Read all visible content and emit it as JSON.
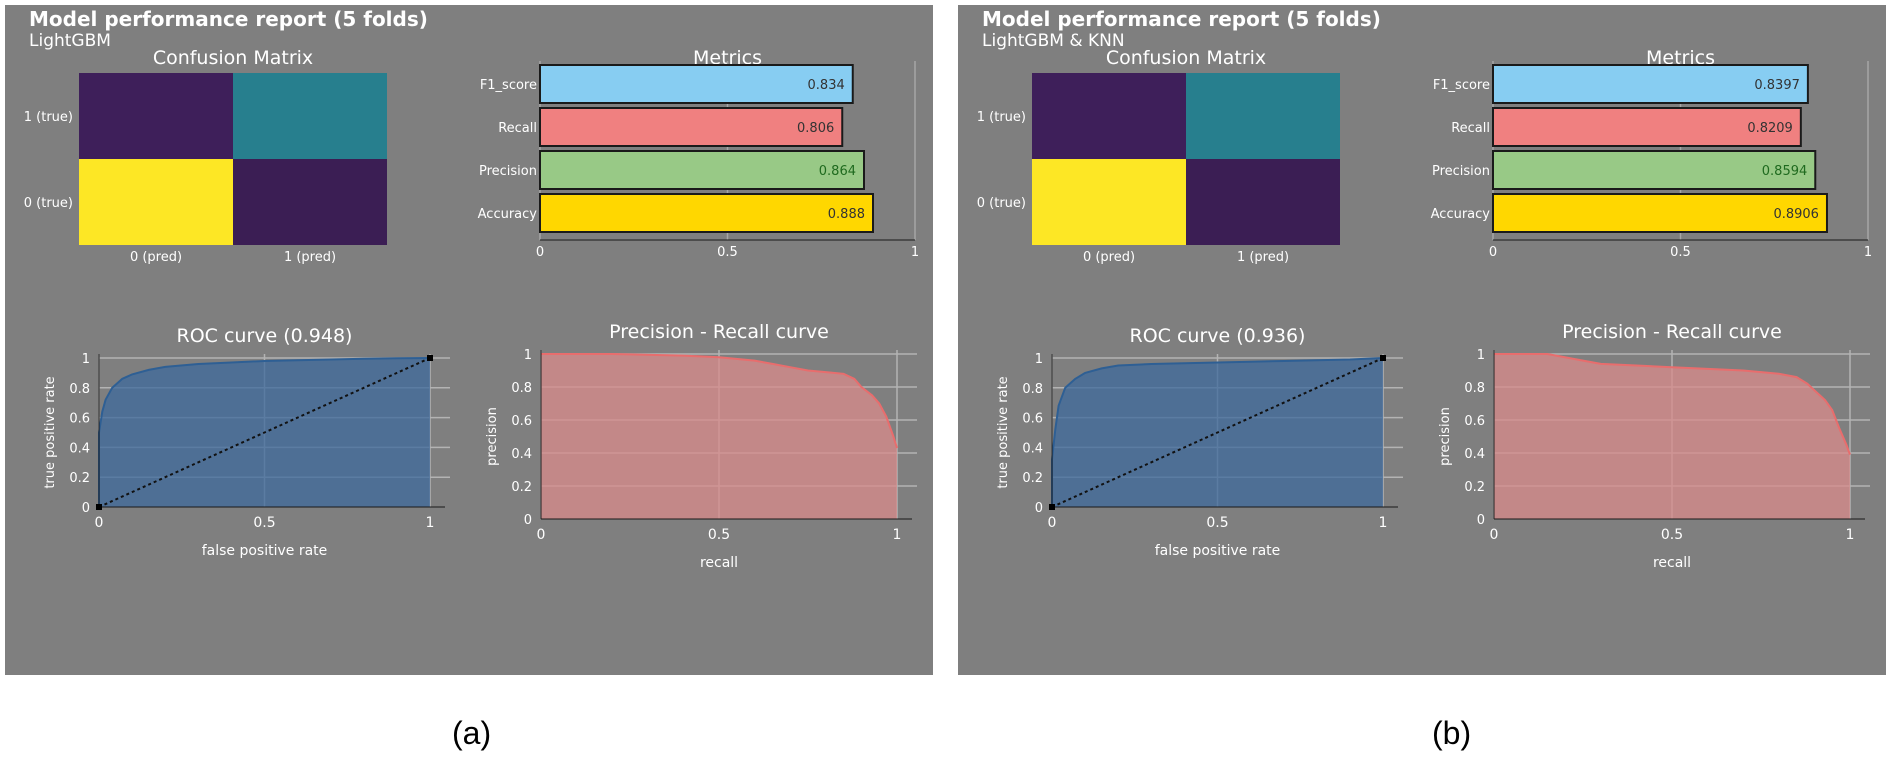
{
  "chart_data": [
    {
      "title": "Model performance report (5 folds)",
      "subtitle": "LightGBM",
      "caption": "(a)",
      "confusion_matrix": {
        "type": "heatmap",
        "title": "Confusion Matrix",
        "row_labels": [
          "1 (true)",
          "0 (true)"
        ],
        "col_labels": [
          "0 (pred)",
          "1 (pred)"
        ],
        "cell_colors": [
          [
            "#3e1f5a",
            "#277f8e"
          ],
          [
            "#fde725",
            "#3b1e54"
          ]
        ]
      },
      "metrics": {
        "type": "bar",
        "title": "Metrics",
        "categories": [
          "F1_score",
          "Recall",
          "Precision",
          "Accuracy"
        ],
        "values": [
          0.834,
          0.806,
          0.864,
          0.888
        ],
        "labels": [
          "0.834",
          "0.806",
          "0.864",
          "0.888"
        ],
        "colors": [
          "#87cdf2",
          "#f08080",
          "#98c986",
          "#ffd700"
        ],
        "xticks": [
          "0",
          "0.5",
          "1"
        ],
        "xlim": [
          0,
          1
        ]
      },
      "roc": {
        "type": "area",
        "title": "ROC curve (0.948)",
        "xlabel": "false positive rate",
        "ylabel": "true positive rate",
        "xticks": [
          "0",
          "0.5",
          "1"
        ],
        "yticks": [
          "0",
          "0.2",
          "0.4",
          "0.6",
          "0.8",
          "1"
        ],
        "x": [
          0,
          0,
          0.01,
          0.02,
          0.04,
          0.07,
          0.1,
          0.15,
          0.2,
          0.3,
          0.4,
          0.5,
          0.6,
          0.7,
          0.8,
          0.9,
          1.0
        ],
        "y": [
          0,
          0.5,
          0.64,
          0.72,
          0.8,
          0.86,
          0.89,
          0.92,
          0.94,
          0.96,
          0.97,
          0.98,
          0.985,
          0.99,
          0.995,
          0.998,
          1.0
        ]
      },
      "pr": {
        "type": "area",
        "title": "Precision - Recall curve",
        "xlabel": "recall",
        "ylabel": "precision",
        "xticks": [
          "0",
          "0.5",
          "1"
        ],
        "yticks": [
          "0",
          "0.2",
          "0.4",
          "0.6",
          "0.8",
          "1"
        ],
        "x": [
          0,
          0.2,
          0.4,
          0.5,
          0.6,
          0.65,
          0.7,
          0.75,
          0.8,
          0.85,
          0.88,
          0.9,
          0.93,
          0.95,
          0.97,
          0.99,
          1.0
        ],
        "y": [
          1,
          1,
          0.99,
          0.98,
          0.96,
          0.94,
          0.92,
          0.9,
          0.89,
          0.88,
          0.85,
          0.8,
          0.75,
          0.7,
          0.62,
          0.5,
          0.43
        ]
      }
    },
    {
      "title": "Model performance report (5 folds)",
      "subtitle": "LightGBM & KNN",
      "caption": "(b)",
      "confusion_matrix": {
        "type": "heatmap",
        "title": "Confusion Matrix",
        "row_labels": [
          "1 (true)",
          "0 (true)"
        ],
        "col_labels": [
          "0 (pred)",
          "1 (pred)"
        ],
        "cell_colors": [
          [
            "#3e1f5a",
            "#277f8e"
          ],
          [
            "#fde725",
            "#3b1e54"
          ]
        ]
      },
      "metrics": {
        "type": "bar",
        "title": "Metrics",
        "categories": [
          "F1_score",
          "Recall",
          "Precision",
          "Accuracy"
        ],
        "values": [
          0.8397,
          0.8209,
          0.8594,
          0.8906
        ],
        "labels": [
          "0.8397",
          "0.8209",
          "0.8594",
          "0.8906"
        ],
        "colors": [
          "#87cdf2",
          "#f08080",
          "#98c986",
          "#ffd700"
        ],
        "xticks": [
          "0",
          "0.5",
          "1"
        ],
        "xlim": [
          0,
          1
        ]
      },
      "roc": {
        "type": "area",
        "title": "ROC curve (0.936)",
        "xlabel": "false positive rate",
        "ylabel": "true positive rate",
        "xticks": [
          "0",
          "0.5",
          "1"
        ],
        "yticks": [
          "0",
          "0.2",
          "0.4",
          "0.6",
          "0.8",
          "1"
        ],
        "x": [
          0,
          0,
          0.01,
          0.02,
          0.04,
          0.07,
          0.1,
          0.15,
          0.2,
          0.3,
          0.4,
          0.5,
          0.6,
          0.7,
          0.8,
          0.9,
          1.0
        ],
        "y": [
          0,
          0.32,
          0.52,
          0.68,
          0.8,
          0.86,
          0.9,
          0.93,
          0.95,
          0.96,
          0.965,
          0.97,
          0.975,
          0.98,
          0.985,
          0.99,
          1.0
        ]
      },
      "pr": {
        "type": "area",
        "title": "Precision - Recall curve",
        "xlabel": "recall",
        "ylabel": "precision",
        "xticks": [
          "0",
          "0.5",
          "1"
        ],
        "yticks": [
          "0",
          "0.2",
          "0.4",
          "0.6",
          "0.8",
          "1"
        ],
        "x": [
          0,
          0.15,
          0.25,
          0.3,
          0.4,
          0.5,
          0.6,
          0.7,
          0.75,
          0.8,
          0.85,
          0.88,
          0.9,
          0.93,
          0.95,
          0.97,
          0.99,
          1.0
        ],
        "y": [
          1,
          1,
          0.96,
          0.94,
          0.93,
          0.92,
          0.91,
          0.9,
          0.89,
          0.88,
          0.86,
          0.82,
          0.78,
          0.72,
          0.66,
          0.55,
          0.45,
          0.39
        ]
      }
    }
  ]
}
